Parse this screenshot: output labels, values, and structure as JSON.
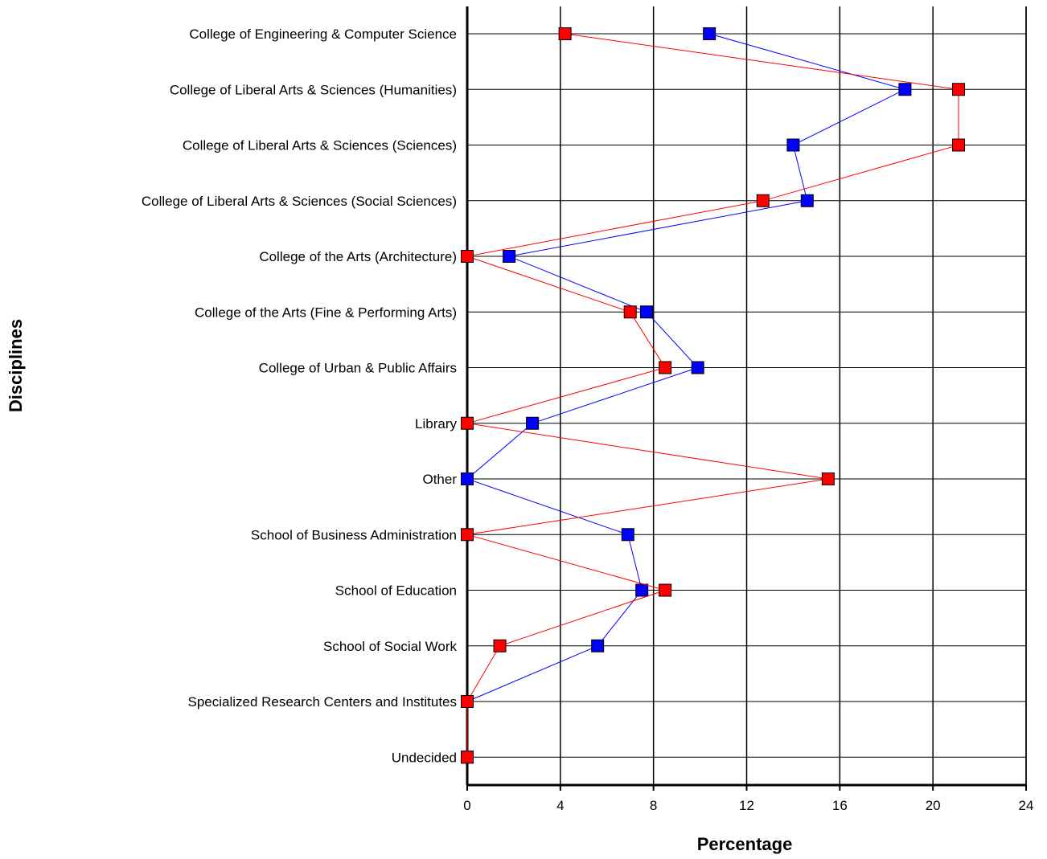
{
  "chart_data": {
    "type": "line",
    "orientation": "horizontal",
    "xlabel": "Percentage",
    "ylabel": "Disciplines",
    "xlim": [
      0,
      24
    ],
    "xticks": [
      "0",
      "4",
      "8",
      "12",
      "16",
      "20",
      "24"
    ],
    "grid": true,
    "legend": "none",
    "categories": [
      "College of Engineering & Computer Science",
      "College of Liberal Arts & Sciences (Humanities)",
      "College of Liberal Arts & Sciences (Sciences)",
      "College of Liberal Arts & Sciences (Social Sciences)",
      "College of the Arts (Architecture)",
      "College of the Arts (Fine & Performing Arts)",
      "College of Urban & Public Affairs",
      "Library",
      "Other",
      "School of Business Administration",
      "School of Education",
      "School of Social Work",
      "Specialized Research Centers and Institutes",
      "Undecided"
    ],
    "series": [
      {
        "color": "#0000ff",
        "values": [
          10.4,
          18.8,
          14.0,
          14.6,
          1.8,
          7.7,
          9.9,
          2.8,
          0.0,
          6.9,
          7.5,
          5.6,
          0.0,
          0.0
        ]
      },
      {
        "color": "#ff0000",
        "values": [
          4.2,
          21.1,
          21.1,
          12.7,
          0.0,
          7.0,
          8.5,
          0.0,
          15.5,
          0.0,
          8.5,
          1.4,
          0.0,
          0.0
        ]
      }
    ]
  }
}
